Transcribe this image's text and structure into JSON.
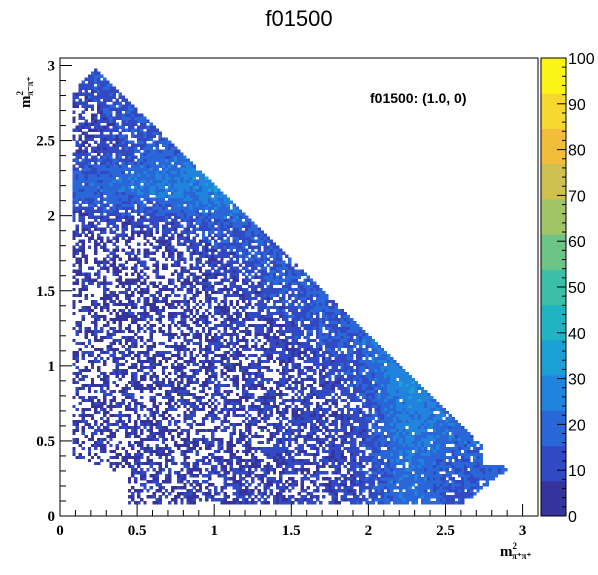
{
  "chart_data": {
    "type": "heatmap",
    "title": "f01500",
    "annotation": "f01500: (1.0, 0)",
    "xlabel": {
      "base": "m",
      "sup": "2",
      "sub": "π⁺π⁺"
    },
    "ylabel": {
      "base": "m",
      "sup": "2",
      "sub": "π⁻π⁺"
    },
    "xlim": [
      0,
      3.1
    ],
    "ylim": [
      0,
      3.05
    ],
    "zlim": [
      0,
      100
    ],
    "x_ticks": [
      "0",
      "0.5",
      "1",
      "1.5",
      "2",
      "2.5",
      "3"
    ],
    "y_ticks": [
      "0",
      "0.5",
      "1",
      "1.5",
      "2",
      "2.5",
      "3"
    ],
    "z_ticks": [
      "0",
      "10",
      "20",
      "30",
      "40",
      "50",
      "60",
      "70",
      "80",
      "90",
      "100"
    ],
    "palette": [
      "#35339c",
      "#3249c4",
      "#2966d8",
      "#2184dc",
      "#1aa0d5",
      "#20b3c3",
      "#3cbfa8",
      "#6cc487",
      "#a0c467",
      "#cfc150",
      "#f2be3a",
      "#f8d830",
      "#fbf417"
    ],
    "resonance_bands": [
      {
        "axis": "y",
        "center": 2.2,
        "description": "horizontal band"
      },
      {
        "axis": "x",
        "center": 2.25,
        "description": "vertical band"
      }
    ]
  }
}
